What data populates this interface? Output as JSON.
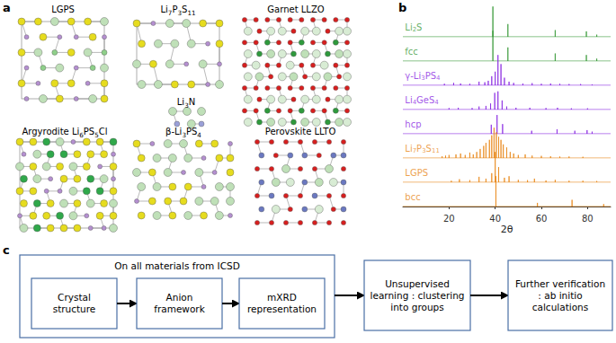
{
  "panels": [
    "a",
    "b",
    "c"
  ],
  "structures": [
    "LGPS",
    "Li7P3S11",
    "Garnet LLZO",
    "Li3N",
    "Argyrodite Li6PS5Cl",
    "β-Li3PS4",
    "Perovskite LLTO"
  ],
  "chart_data": {
    "type": "line",
    "x_label": "2θ",
    "xlim": [
      0,
      90
    ],
    "xticks": [
      20,
      40,
      60,
      80
    ],
    "ylim": [
      0,
      1
    ],
    "tick_labels": "x",
    "grid": false,
    "series": [
      {
        "name": "Li2S",
        "color": "#3a9a3a",
        "x": [
          39,
          45.5,
          66,
          79.5,
          84
        ],
        "values": [
          1,
          0.42,
          0.22,
          0.18,
          0.07
        ]
      },
      {
        "name": "fcc",
        "color": "#3a9a3a",
        "x": [
          39,
          45.5,
          66,
          79.5,
          84
        ],
        "values": [
          1,
          0.45,
          0.25,
          0.2,
          0.08
        ]
      },
      {
        "name": "γ-Li3PS4",
        "color": "#8a2be2",
        "x": [
          18,
          22,
          25,
          29,
          33,
          35.5,
          37,
          38.5,
          40,
          41.2,
          42.5,
          44,
          46,
          48,
          52,
          56,
          60,
          64,
          68,
          72,
          77,
          82
        ],
        "values": [
          0.05,
          0.08,
          0.06,
          0.05,
          0.12,
          0.1,
          0.15,
          0.3,
          0.45,
          1,
          0.7,
          0.25,
          0.12,
          0.08,
          0.06,
          0.07,
          0.05,
          0.06,
          0.05,
          0.04,
          0.04,
          0.03
        ]
      },
      {
        "name": "Li4GeS4",
        "color": "#8a2be2",
        "x": [
          20,
          24,
          30,
          33,
          36,
          38,
          39.8,
          41.2,
          43,
          45,
          49,
          55,
          62,
          67,
          73,
          80
        ],
        "values": [
          0.05,
          0.06,
          0.05,
          0.1,
          0.12,
          0.2,
          0.55,
          0.6,
          0.3,
          0.1,
          0.06,
          0.06,
          0.05,
          0.06,
          0.04,
          0.04
        ]
      },
      {
        "name": "hcp",
        "color": "#8a2be2",
        "x": [
          38.3,
          40.8,
          43.2,
          55.8,
          66.8,
          74.5,
          79.8,
          82
        ],
        "values": [
          0.3,
          0.62,
          0.32,
          0.1,
          0.15,
          0.1,
          0.12,
          0.07
        ]
      },
      {
        "name": "Li7P3S11",
        "color": "#e8891c",
        "x": [
          17,
          18.5,
          20,
          23,
          25,
          27,
          29,
          30.5,
          32,
          33.5,
          35,
          36,
          37.5,
          38.5,
          39.5,
          40.5,
          41.5,
          42.5,
          43.5,
          45,
          46.5,
          48,
          50,
          53,
          56,
          60,
          64,
          68,
          72,
          78
        ],
        "values": [
          0.06,
          0.08,
          0.1,
          0.12,
          0.15,
          0.1,
          0.18,
          0.12,
          0.2,
          0.3,
          0.4,
          0.5,
          0.6,
          0.75,
          1,
          0.85,
          0.7,
          0.6,
          0.45,
          0.35,
          0.2,
          0.15,
          0.1,
          0.12,
          0.08,
          0.07,
          0.06,
          0.05,
          0.05,
          0.04
        ]
      },
      {
        "name": "LGPS",
        "color": "#e8891c",
        "x": [
          21,
          24.5,
          29,
          33,
          36,
          38.5,
          40,
          41.5,
          44,
          46,
          50,
          54,
          57,
          62,
          66,
          72,
          78,
          84
        ],
        "values": [
          0.05,
          0.1,
          0.07,
          0.18,
          0.12,
          0.3,
          1,
          0.5,
          0.15,
          0.2,
          0.08,
          0.07,
          0.12,
          0.06,
          0.08,
          0.05,
          0.05,
          0.04
        ]
      },
      {
        "name": "bcc",
        "color": "#e8891c",
        "x": [
          40.3,
          58.3,
          73.3,
          87
        ],
        "values": [
          1,
          0.12,
          0.22,
          0.08
        ]
      }
    ]
  },
  "flowchart": {
    "group_title": "On all materials from ICSD",
    "group_steps": [
      "Crystal structure",
      "Anion framework",
      "mXRD representation"
    ],
    "steps": [
      "Unsupervised learning : clustering into groups",
      "Further verification : ab initio calculations"
    ]
  }
}
